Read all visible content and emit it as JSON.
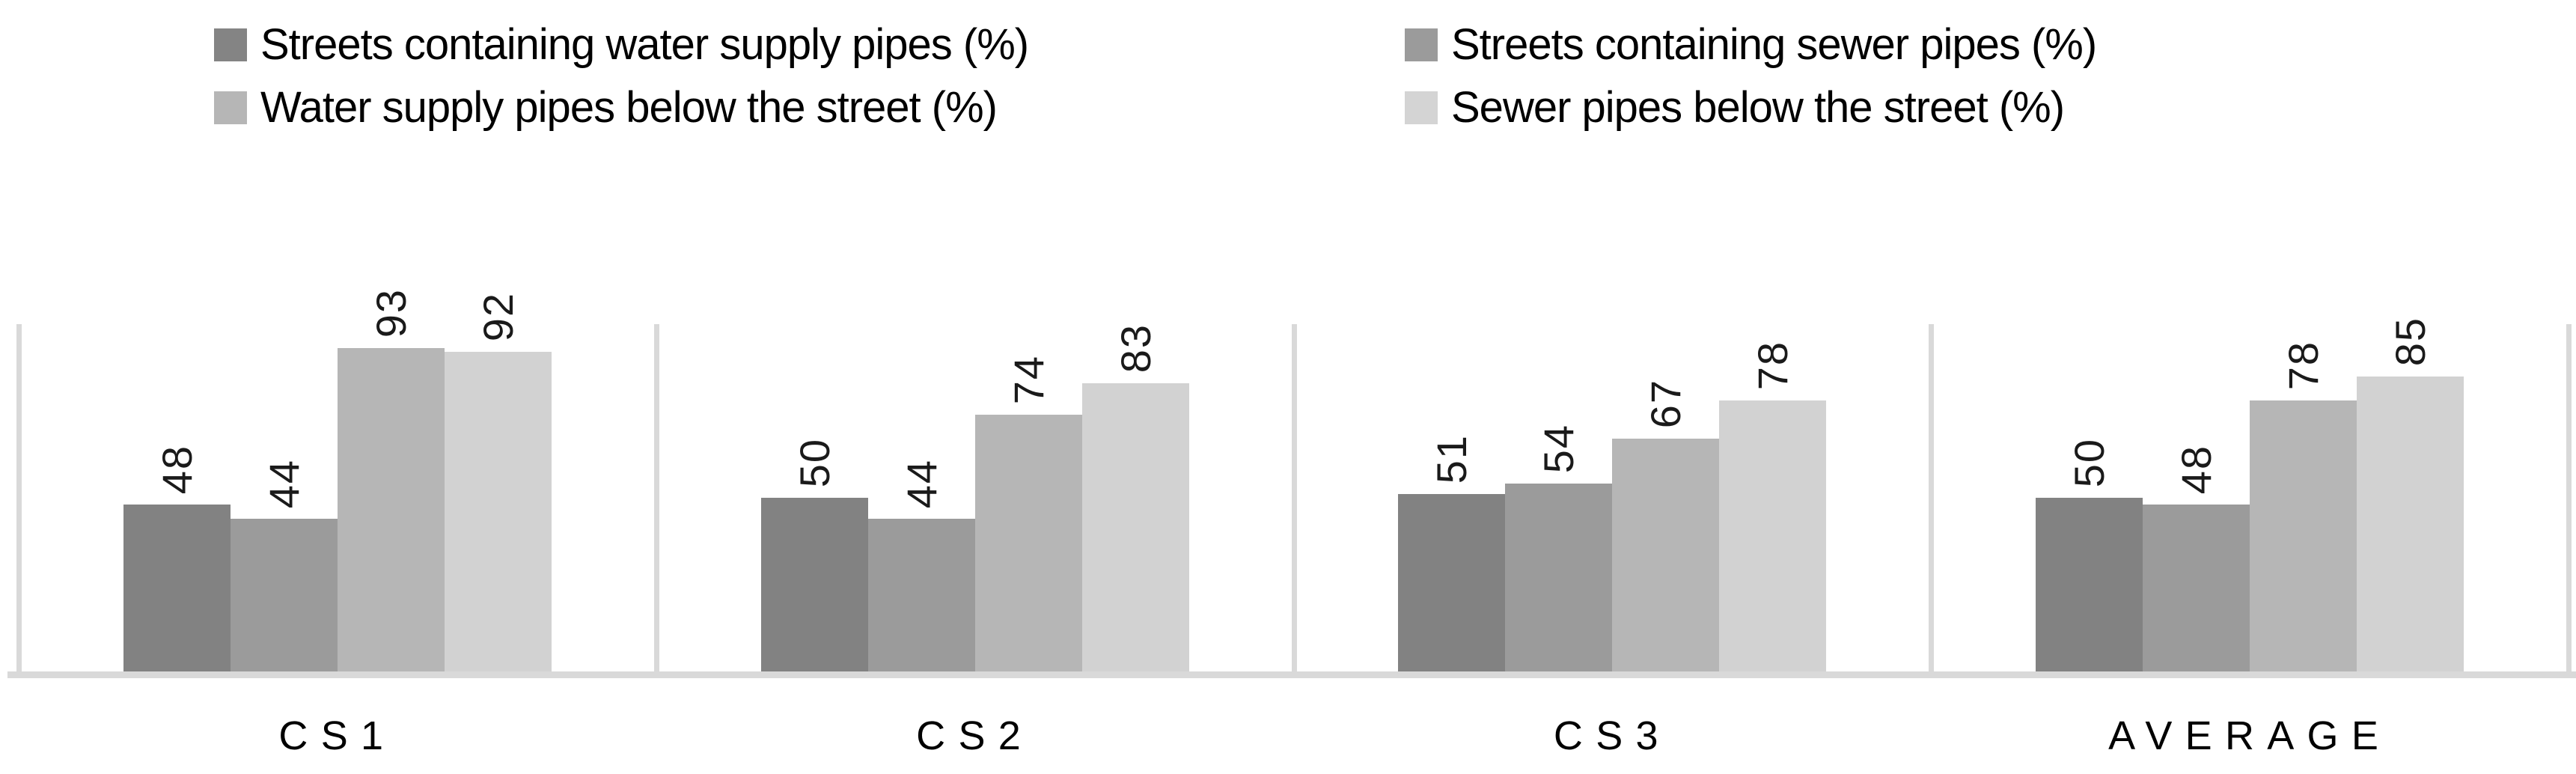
{
  "legend": {
    "items": [
      {
        "label": "Streets containing water supply pipes (%)",
        "color": "#848484"
      },
      {
        "label": "Streets containing sewer pipes (%)",
        "color": "#9b9b9b"
      },
      {
        "label": "Water supply pipes below the street (%)",
        "color": "#b6b6b6"
      },
      {
        "label": "Sewer pipes below the street (%)",
        "color": "#d4d4d4"
      }
    ]
  },
  "chart_data": {
    "type": "bar",
    "categories": [
      "CS1",
      "CS2",
      "CS3",
      "AVERAGE"
    ],
    "series": [
      {
        "name": "Streets containing water supply pipes (%)",
        "color": "#828282",
        "values": [
          48,
          50,
          51,
          50
        ]
      },
      {
        "name": "Streets containing sewer pipes (%)",
        "color": "#9b9b9b",
        "values": [
          44,
          44,
          54,
          48
        ]
      },
      {
        "name": "Water supply pipes below the street (%)",
        "color": "#b6b6b6",
        "values": [
          93,
          74,
          67,
          78
        ]
      },
      {
        "name": "Sewer pipes below the street (%)",
        "color": "#d2d2d2",
        "values": [
          92,
          83,
          78,
          85
        ]
      }
    ],
    "ylim": [
      0,
      100
    ],
    "title": "",
    "xlabel": "",
    "ylabel": "",
    "data_labels": "rotated 90deg counterclockwise, above bars",
    "legend_position": "top, two columns by two rows",
    "gridlines": "vertical category separator lines only",
    "axis_line_color": "#d9d9d9"
  }
}
